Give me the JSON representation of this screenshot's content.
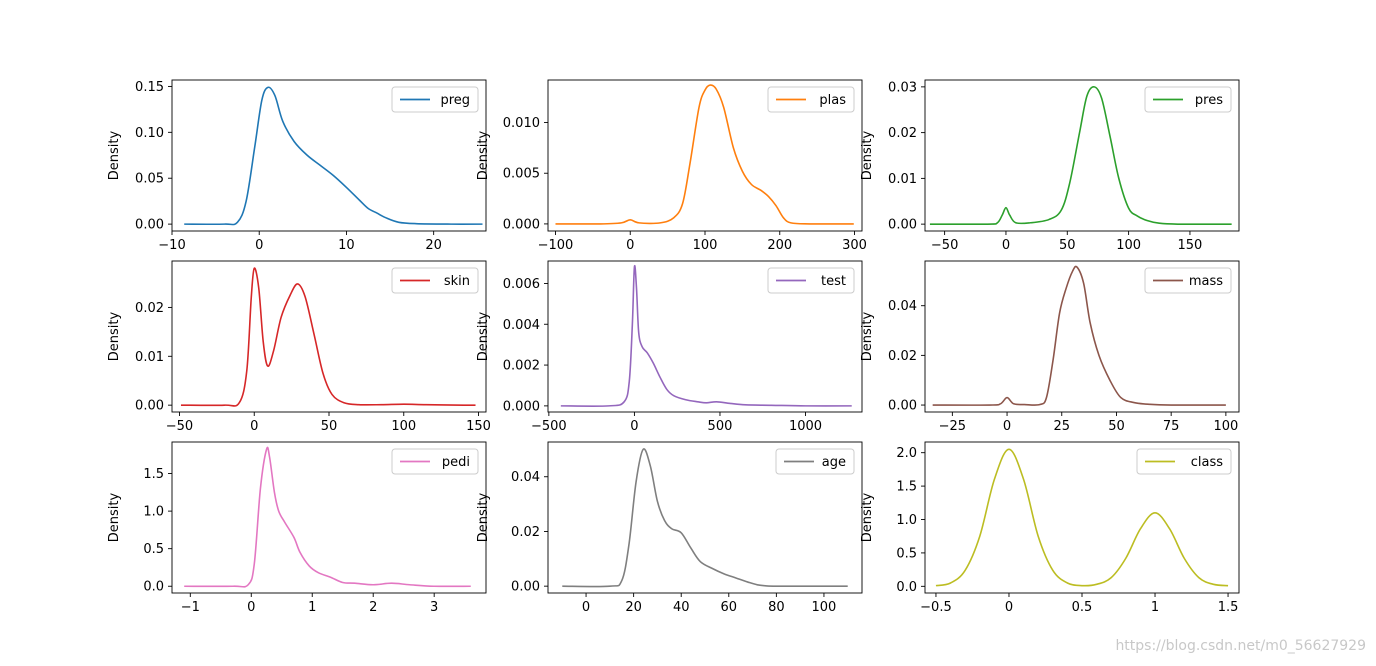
{
  "watermark": "https://blog.csdn.net/m0_56627929",
  "chart_data": [
    {
      "type": "line",
      "series": [
        {
          "name": "preg",
          "color": "#1f77b4"
        }
      ],
      "ylabel": "Density",
      "xlim": [
        -10,
        26
      ],
      "ylim": [
        -0.0075,
        0.157
      ],
      "xticks": [
        -10,
        0,
        10,
        20
      ],
      "yticks": [
        0.0,
        0.05,
        0.1,
        0.15
      ],
      "yticklabels": [
        "0.00",
        "0.05",
        "0.10",
        "0.15"
      ],
      "legend": "upper right",
      "x": [
        -8.6,
        -4,
        -2.5,
        -1.5,
        -0.5,
        0.3,
        1.0,
        1.8,
        2.7,
        4,
        5.5,
        7,
        8.5,
        10,
        11.5,
        12.5,
        13.5,
        14.5,
        16,
        18,
        22,
        25.6
      ],
      "y": [
        0,
        0,
        0.002,
        0.025,
        0.085,
        0.135,
        0.149,
        0.14,
        0.112,
        0.09,
        0.075,
        0.064,
        0.053,
        0.04,
        0.026,
        0.017,
        0.012,
        0.007,
        0.002,
        0.0005,
        0,
        0
      ]
    },
    {
      "type": "line",
      "series": [
        {
          "name": "plas",
          "color": "#ff7f0e"
        }
      ],
      "ylabel": "Density",
      "xlim": [
        -110,
        310
      ],
      "ylim": [
        -0.0007,
        0.0142
      ],
      "xticks": [
        -100,
        0,
        100,
        200,
        300
      ],
      "yticks": [
        0.0,
        0.005,
        0.01
      ],
      "yticklabels": [
        "0.000",
        "0.005",
        "0.010"
      ],
      "legend": "upper right",
      "x": [
        -100,
        -40,
        -12,
        0,
        12,
        40,
        58,
        70,
        80,
        92,
        100,
        107,
        115,
        125,
        138,
        150,
        162,
        175,
        185,
        195,
        205,
        215,
        240,
        299
      ],
      "y": [
        0,
        0,
        0.0001,
        0.0004,
        0.0001,
        0.0001,
        0.0006,
        0.002,
        0.006,
        0.0115,
        0.0132,
        0.0137,
        0.0133,
        0.0115,
        0.0075,
        0.0052,
        0.0039,
        0.0033,
        0.0027,
        0.0018,
        0.0006,
        0.0001,
        0,
        0
      ]
    },
    {
      "type": "line",
      "series": [
        {
          "name": "pres",
          "color": "#2ca02c"
        }
      ],
      "ylabel": "Density",
      "xlim": [
        -66,
        190
      ],
      "ylim": [
        -0.0015,
        0.0315
      ],
      "xticks": [
        -50,
        0,
        50,
        100,
        150
      ],
      "yticks": [
        0.0,
        0.01,
        0.02,
        0.03
      ],
      "yticklabels": [
        "0.00",
        "0.01",
        "0.02",
        "0.03"
      ],
      "legend": "upper right",
      "x": [
        -62,
        -15,
        -7,
        -3,
        0,
        3,
        8,
        20,
        35,
        45,
        52,
        60,
        66,
        72,
        78,
        85,
        92,
        100,
        107,
        115,
        125,
        140,
        184
      ],
      "y": [
        0,
        0,
        0.0003,
        0.002,
        0.0036,
        0.002,
        0.0003,
        0.0003,
        0.001,
        0.003,
        0.009,
        0.02,
        0.028,
        0.03,
        0.0275,
        0.019,
        0.01,
        0.0035,
        0.0018,
        0.0008,
        0.0002,
        0,
        0
      ]
    },
    {
      "type": "line",
      "series": [
        {
          "name": "skin",
          "color": "#d62728"
        }
      ],
      "ylabel": "Density",
      "xlim": [
        -55,
        155
      ],
      "ylim": [
        -0.0014,
        0.0295
      ],
      "xticks": [
        -50,
        0,
        50,
        100,
        150
      ],
      "yticks": [
        0.0,
        0.01,
        0.02
      ],
      "yticklabels": [
        "0.00",
        "0.01",
        "0.02"
      ],
      "legend": "upper right",
      "x": [
        -49,
        -20,
        -10,
        -5,
        -2,
        0,
        3,
        6,
        9,
        13,
        18,
        24,
        29,
        34,
        40,
        46,
        52,
        60,
        70,
        85,
        100,
        115,
        140,
        148
      ],
      "y": [
        0,
        0,
        0.0005,
        0.007,
        0.022,
        0.028,
        0.024,
        0.013,
        0.008,
        0.0112,
        0.018,
        0.0225,
        0.0248,
        0.0222,
        0.0145,
        0.0065,
        0.0022,
        0.0005,
        0.0001,
        0.0001,
        0.0002,
        0.0001,
        0,
        0
      ]
    },
    {
      "type": "line",
      "series": [
        {
          "name": "test",
          "color": "#9467bd"
        }
      ],
      "ylabel": "Density",
      "xlim": [
        -505,
        1330
      ],
      "ylim": [
        -0.0003,
        0.0071
      ],
      "xticks": [
        -500,
        0,
        500,
        1000
      ],
      "yticks": [
        0.0,
        0.002,
        0.004,
        0.006
      ],
      "yticklabels": [
        "0.000",
        "0.002",
        "0.004",
        "0.006"
      ],
      "legend": "upper right",
      "x": [
        -430,
        -150,
        -60,
        -30,
        -12,
        0,
        12,
        25,
        45,
        75,
        110,
        150,
        190,
        230,
        300,
        370,
        420,
        480,
        560,
        650,
        800,
        1000,
        1270
      ],
      "y": [
        0,
        0,
        0.0002,
        0.0012,
        0.004,
        0.0068,
        0.0058,
        0.0036,
        0.0029,
        0.0026,
        0.0021,
        0.0014,
        0.0008,
        0.0005,
        0.0003,
        0.0002,
        0.00015,
        0.0002,
        0.00012,
        5e-05,
        3e-05,
        0,
        0
      ]
    },
    {
      "type": "line",
      "series": [
        {
          "name": "mass",
          "color": "#8c564b"
        }
      ],
      "ylabel": "Density",
      "xlim": [
        -37.5,
        106
      ],
      "ylim": [
        -0.0028,
        0.058
      ],
      "xticks": [
        -25,
        0,
        25,
        50,
        75,
        100
      ],
      "yticks": [
        0.0,
        0.02,
        0.04
      ],
      "yticklabels": [
        "0.00",
        "0.02",
        "0.04"
      ],
      "legend": "upper right",
      "x": [
        -34,
        -8,
        -3,
        0,
        3,
        8,
        15,
        18,
        21,
        24,
        27,
        30,
        32,
        35,
        38,
        42,
        47,
        52,
        58,
        65,
        75,
        100
      ],
      "y": [
        0,
        0,
        0.0005,
        0.003,
        0.0005,
        0.0002,
        0.0002,
        0.003,
        0.018,
        0.037,
        0.047,
        0.054,
        0.0555,
        0.049,
        0.033,
        0.02,
        0.01,
        0.003,
        0.001,
        0.0003,
        0,
        0
      ]
    },
    {
      "type": "line",
      "series": [
        {
          "name": "pedi",
          "color": "#e377c2"
        }
      ],
      "ylabel": "Density",
      "xlim": [
        -1.3,
        3.85
      ],
      "ylim": [
        -0.09,
        1.92
      ],
      "xticks": [
        -1,
        0,
        1,
        2,
        3
      ],
      "yticks": [
        0.0,
        0.5,
        1.0,
        1.5
      ],
      "yticklabels": [
        "0.0",
        "0.5",
        "1.0",
        "1.5"
      ],
      "legend": "upper right",
      "x": [
        -1.1,
        -0.3,
        -0.05,
        0.05,
        0.15,
        0.25,
        0.3,
        0.38,
        0.45,
        0.55,
        0.7,
        0.8,
        0.95,
        1.1,
        1.3,
        1.5,
        1.7,
        2.0,
        2.3,
        2.6,
        3.0,
        3.6
      ],
      "y": [
        0,
        0,
        0.02,
        0.3,
        1.3,
        1.82,
        1.72,
        1.25,
        1.0,
        0.85,
        0.65,
        0.45,
        0.27,
        0.18,
        0.12,
        0.05,
        0.04,
        0.02,
        0.04,
        0.02,
        0,
        0
      ]
    },
    {
      "type": "line",
      "series": [
        {
          "name": "age",
          "color": "#7f7f7f"
        }
      ],
      "ylabel": "Density",
      "xlim": [
        -16,
        116
      ],
      "ylim": [
        -0.0025,
        0.0527
      ],
      "xticks": [
        0,
        20,
        40,
        60,
        80,
        100
      ],
      "yticks": [
        0.0,
        0.02,
        0.04
      ],
      "yticklabels": [
        "0.00",
        "0.02",
        "0.04"
      ],
      "legend": "upper right",
      "x": [
        -10,
        10,
        15,
        18,
        21,
        24,
        27,
        30,
        33,
        36,
        40,
        44,
        48,
        53,
        58,
        63,
        68,
        72,
        76,
        80,
        90,
        110
      ],
      "y": [
        0,
        0,
        0.002,
        0.015,
        0.038,
        0.05,
        0.044,
        0.031,
        0.024,
        0.021,
        0.0195,
        0.014,
        0.009,
        0.0065,
        0.0045,
        0.003,
        0.0015,
        0.0005,
        0.0001,
        0,
        0,
        0
      ]
    },
    {
      "type": "line",
      "series": [
        {
          "name": "class",
          "color": "#bcbd22"
        }
      ],
      "ylabel": "Density",
      "xlim": [
        -0.575,
        1.575
      ],
      "ylim": [
        -0.1,
        2.16
      ],
      "xticks": [
        -0.5,
        0.0,
        0.5,
        1.0,
        1.5
      ],
      "yticks": [
        0.0,
        0.5,
        1.0,
        1.5,
        2.0
      ],
      "yticklabels": [
        "0.0",
        "0.5",
        "1.0",
        "1.5",
        "2.0"
      ],
      "legend": "upper right",
      "x": [
        -0.5,
        -0.4,
        -0.3,
        -0.2,
        -0.1,
        0.0,
        0.1,
        0.2,
        0.3,
        0.4,
        0.5,
        0.6,
        0.7,
        0.8,
        0.9,
        1.0,
        1.1,
        1.2,
        1.3,
        1.4,
        1.5
      ],
      "y": [
        0.01,
        0.05,
        0.24,
        0.75,
        1.6,
        2.05,
        1.6,
        0.75,
        0.24,
        0.05,
        0.01,
        0.03,
        0.13,
        0.42,
        0.86,
        1.1,
        0.86,
        0.42,
        0.13,
        0.03,
        0.01
      ]
    }
  ]
}
